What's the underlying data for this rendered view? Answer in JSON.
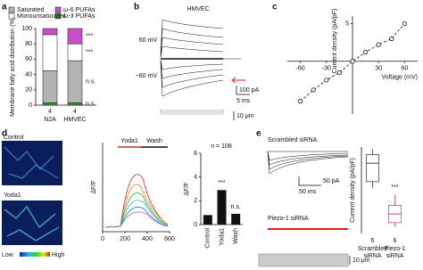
{
  "panels": [
    "a",
    "b",
    "c",
    "d",
    "e"
  ],
  "panel_b": {
    "title": "HMVEC",
    "labels": [
      "60 mV",
      "−60 mV"
    ],
    "scale_bars": [
      "100 pA",
      "5 ms",
      "10 μm"
    ]
  },
  "panel_d_images": {
    "labels": [
      "Control",
      "Yoda1"
    ],
    "colorbar": [
      "Low",
      "High"
    ]
  },
  "panel_e_traces": {
    "labels": [
      "Scrambled siRNA",
      "Piezo-1 siRNA"
    ],
    "scale_bars": [
      "50 pA",
      "50 ms",
      "10 μm"
    ]
  },
  "chart_data": [
    {
      "type": "stacked-bar",
      "categories": [
        "N2A",
        "HMVEC"
      ],
      "n_labels": [
        "4",
        "4"
      ],
      "ylabel": "Membrane fatty acid distribution (%)",
      "ylim": [
        0,
        100
      ],
      "yticks": [
        0,
        20,
        40,
        60,
        80,
        100
      ],
      "series": [
        {
          "name": "ω-3 PUFAs",
          "color": "#2ca02c",
          "values": [
            3,
            3
          ]
        },
        {
          "name": "Saturated",
          "color": "#b3b3b3",
          "values": [
            42,
            55
          ]
        },
        {
          "name": "Monounsaturated",
          "color": "#ffffff",
          "values": [
            47,
            22
          ]
        },
        {
          "name": "ω-6 PUFAs",
          "color": "#c94fc9",
          "values": [
            8,
            20
          ]
        }
      ],
      "annotations": [
        "***",
        "***",
        "n.s.",
        "n.s."
      ]
    },
    {
      "type": "scatter-line",
      "xlabel": "Voltage (mV)",
      "ylabel": "Current density (pA/pF)",
      "x": [
        -60,
        -45,
        -30,
        -15,
        0,
        15,
        30,
        45,
        60
      ],
      "values": [
        -5.3,
        -3.8,
        -2.5,
        -1.5,
        0,
        1.2,
        2.2,
        3.0,
        5.0
      ],
      "xlim": [
        -75,
        75
      ],
      "ylim": [
        -7,
        6
      ],
      "xticks": [
        -60,
        -30,
        30,
        60
      ],
      "yticks": [
        5
      ]
    },
    {
      "type": "traces",
      "ylabel": "ΔF/F",
      "annotations": [
        "Yoda1",
        "Wash"
      ],
      "xlim": [
        0,
        600
      ],
      "xticks": [
        0,
        200,
        400,
        600
      ]
    },
    {
      "type": "bar",
      "categories": [
        "Control",
        "Yoda1",
        "Wash"
      ],
      "values": [
        0.8,
        2.9,
        0.9
      ],
      "color": "#111111",
      "ylabel": "ΔF/F",
      "ylim": [
        0,
        6
      ],
      "yticks": [
        0,
        2,
        4,
        6
      ],
      "annotations": [
        "n = 108",
        "***",
        "n.s."
      ]
    },
    {
      "type": "box",
      "categories": [
        [
          "Scrambled",
          "siRNA"
        ],
        [
          "Piezo-1",
          "siRNA"
        ]
      ],
      "n_labels": [
        "5",
        "6"
      ],
      "ylabel": "Current density (pA/pF)",
      "ylim": [
        0,
        8
      ],
      "colors": [
        "#444444",
        "#e0457b"
      ],
      "min": [
        4.2,
        0.6
      ],
      "q1": [
        4.8,
        1.0
      ],
      "median": [
        6.5,
        1.8
      ],
      "q3": [
        7.3,
        2.6
      ],
      "max": [
        7.8,
        3.6
      ],
      "annotation": "***"
    }
  ]
}
